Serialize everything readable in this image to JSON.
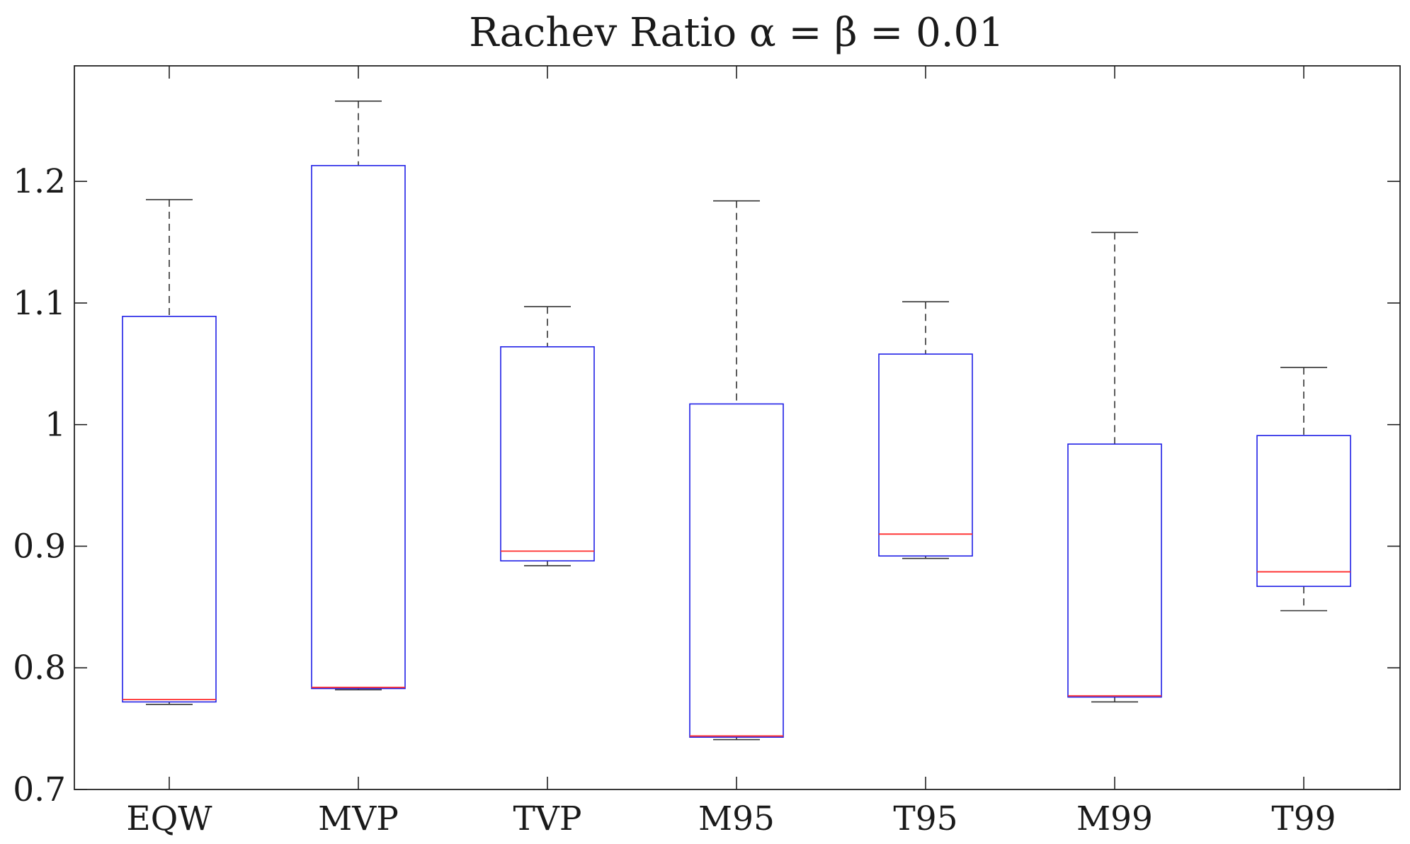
{
  "chart_data": {
    "type": "box",
    "title": "Rachev Ratio α = β = 0.01",
    "xlabel": "",
    "ylabel": "",
    "ylim": [
      0.7,
      1.295
    ],
    "yticks": [
      0.7,
      0.8,
      0.9,
      1,
      1.1,
      1.2
    ],
    "ytick_labels": [
      "0.7",
      "0.8",
      "0.9",
      "1",
      "1.1",
      "1.2"
    ],
    "categories": [
      "EQW",
      "MVP",
      "TVP",
      "M95",
      "T95",
      "M99",
      "T99"
    ],
    "boxes": [
      {
        "name": "EQW",
        "whisker_low": 0.77,
        "q1": 0.772,
        "median": 0.774,
        "q3": 1.089,
        "whisker_high": 1.185
      },
      {
        "name": "MVP",
        "whisker_low": 0.782,
        "q1": 0.783,
        "median": 0.784,
        "q3": 1.213,
        "whisker_high": 1.266
      },
      {
        "name": "TVP",
        "whisker_low": 0.884,
        "q1": 0.888,
        "median": 0.896,
        "q3": 1.064,
        "whisker_high": 1.097
      },
      {
        "name": "M95",
        "whisker_low": 0.741,
        "q1": 0.743,
        "median": 0.744,
        "q3": 1.017,
        "whisker_high": 1.184
      },
      {
        "name": "T95",
        "whisker_low": 0.89,
        "q1": 0.892,
        "median": 0.91,
        "q3": 1.058,
        "whisker_high": 1.101
      },
      {
        "name": "M99",
        "whisker_low": 0.772,
        "q1": 0.776,
        "median": 0.777,
        "q3": 0.984,
        "whisker_high": 1.158
      },
      {
        "name": "T99",
        "whisker_low": 0.847,
        "q1": 0.867,
        "median": 0.879,
        "q3": 0.991,
        "whisker_high": 1.047
      }
    ],
    "colors": {
      "box": "#1f1fe6",
      "median": "#ff2b2b",
      "whisker": "#333333",
      "axis": "#222222"
    }
  }
}
